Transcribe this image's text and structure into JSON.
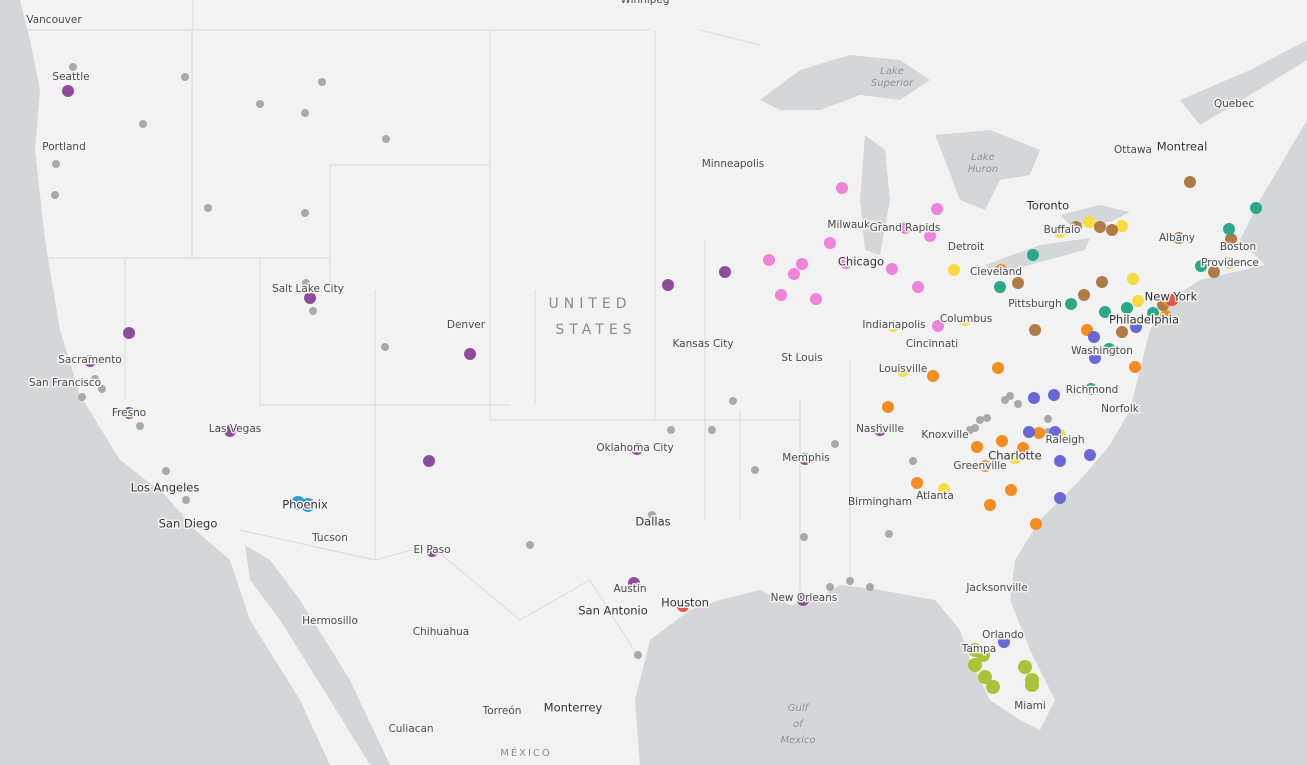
{
  "map": {
    "labels": [
      "Vancouver",
      "Winnipeg",
      "Seattle",
      "Portland",
      "Salt Lake City",
      "Denver",
      "Minneapolis",
      "Milwaukee",
      "Grand Rapids",
      "Detroit",
      "Toronto",
      "Ottawa",
      "Montreal",
      "Quebec",
      "Buffalo",
      "Albany",
      "Boston",
      "Providence",
      "Chicago",
      "Cleveland",
      "Pittsburgh",
      "New York",
      "Philadelphia",
      "Washington",
      "Indianapolis",
      "Columbus",
      "Cincinnati",
      "Kansas City",
      "St Louis",
      "Louisville",
      "Richmond",
      "Norfolk",
      "Nashville",
      "Knoxville",
      "Raleigh",
      "Charlotte",
      "Greenville",
      "Oklahoma City",
      "Memphis",
      "Atlanta",
      "Birmingham",
      "Dallas",
      "Sacramento",
      "San Francisco",
      "Fresno",
      "Las Vegas",
      "Los Angeles",
      "San Diego",
      "Phoenix",
      "Tucson",
      "El Paso",
      "Austin",
      "San Antonio",
      "Houston",
      "New Orleans",
      "Jacksonville",
      "Orlando",
      "Tampa",
      "Miami",
      "Hermosillo",
      "Chihuahua",
      "Torreón",
      "Monterrey",
      "Culiacan"
    ],
    "region_labels": [
      "UNITED",
      "STATES",
      "MÉXICO"
    ],
    "water_labels": [
      "Lake",
      "Superior",
      "Lake",
      "Huron",
      "Gulf",
      "of",
      "Mexico"
    ]
  }
}
